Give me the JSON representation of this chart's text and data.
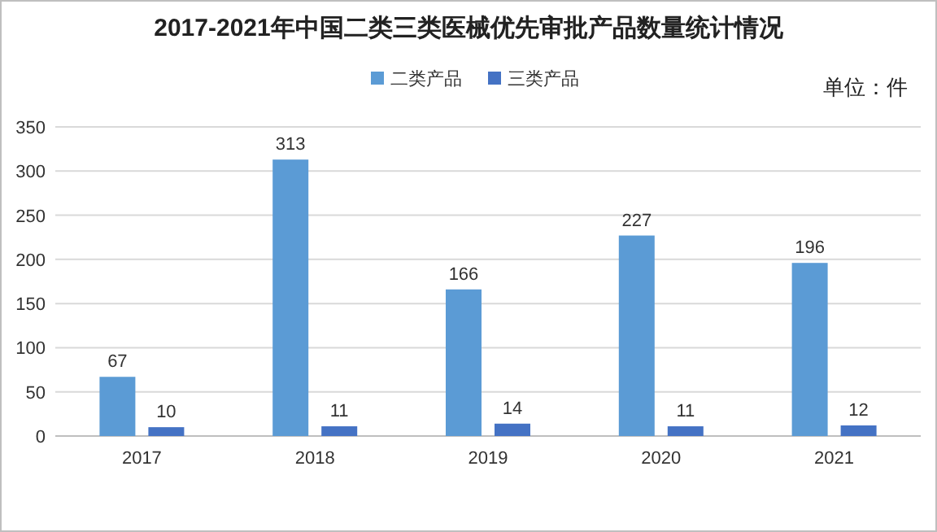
{
  "chart_data": {
    "type": "bar",
    "title": "2017-2021年中国二类三类医械优先审批产品数量统计情况",
    "categories": [
      "2017",
      "2018",
      "2019",
      "2020",
      "2021"
    ],
    "series": [
      {
        "name": "二类产品",
        "color": "#5b9bd5",
        "values": [
          67,
          313,
          166,
          227,
          196
        ]
      },
      {
        "name": "三类产品",
        "color": "#4472c4",
        "values": [
          10,
          11,
          14,
          11,
          12
        ]
      }
    ],
    "ylim": [
      0,
      350
    ],
    "yticks": [
      0,
      50,
      100,
      150,
      200,
      250,
      300,
      350
    ],
    "grid": "y",
    "legend": "top",
    "data_labels": true,
    "annotations": [
      "单位：件"
    ]
  }
}
